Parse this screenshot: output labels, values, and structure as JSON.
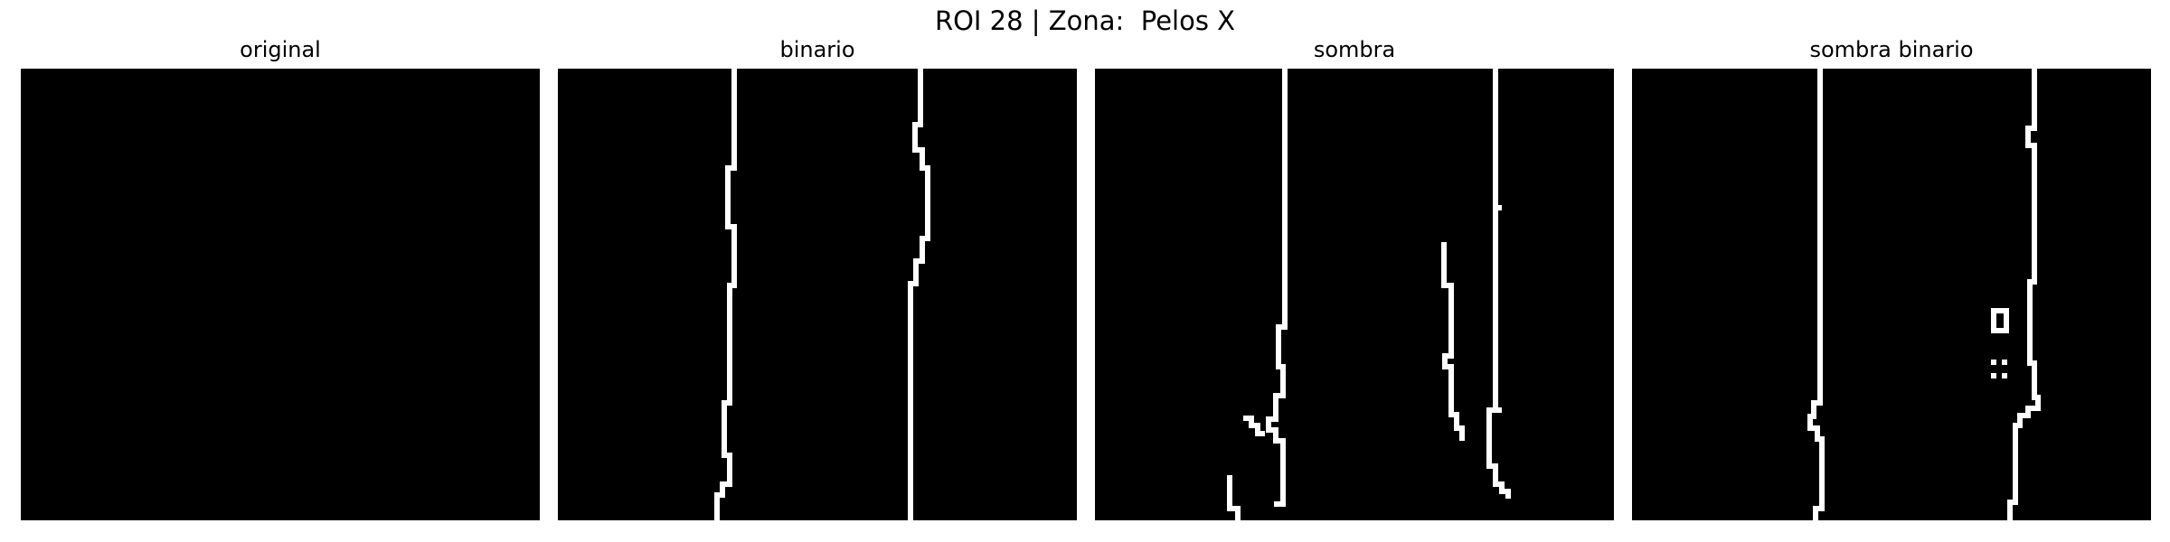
{
  "figure": {
    "title": "ROI 28 | Zona:  Pelos X",
    "panels": [
      {
        "key": "original",
        "title": "original"
      },
      {
        "key": "binario",
        "title": "binario"
      },
      {
        "key": "sombra",
        "title": "sombra"
      },
      {
        "key": "sombra_binario",
        "title": "sombra binario"
      }
    ],
    "colors": {
      "background": "#ffffff",
      "image_background": "#000000",
      "foreground_pixels": "#ffffff"
    }
  }
}
